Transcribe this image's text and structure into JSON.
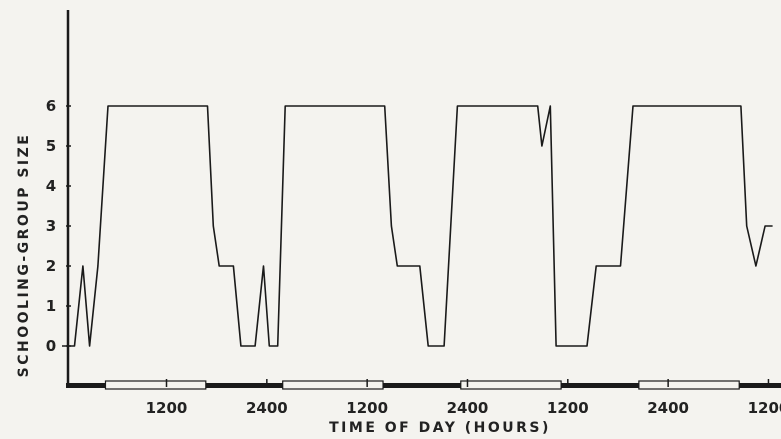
{
  "chart_data": {
    "type": "line",
    "title": "",
    "xlabel": "TIME OF DAY (HOURS)",
    "ylabel": "SCHOOLING-GROUP SIZE",
    "ylim": [
      0,
      6
    ],
    "y_ticks": [
      "0",
      "1",
      "2",
      "3",
      "4",
      "5",
      "6"
    ],
    "x_tick_labels": [
      "1200",
      "2400",
      "1200",
      "2400",
      "1200",
      "2400",
      "1200"
    ],
    "x_tick_hours": [
      12,
      24,
      36,
      48,
      60,
      72,
      84
    ],
    "xlim": [
      -0.5,
      85.5
    ],
    "light_periods": [
      [
        4.7,
        16.7
      ],
      [
        25.9,
        37.9
      ],
      [
        47.2,
        59.2
      ],
      [
        68.5,
        80.5
      ]
    ],
    "grid": false,
    "series": [
      {
        "points": [
          [
            -0.5,
            0
          ],
          [
            1,
            0
          ],
          [
            2,
            2
          ],
          [
            2.8,
            0
          ],
          [
            3.8,
            2
          ],
          [
            5,
            6
          ],
          [
            16.9,
            6
          ],
          [
            17.6,
            3
          ],
          [
            18.3,
            2
          ],
          [
            20,
            2
          ],
          [
            20.9,
            0
          ],
          [
            22.6,
            0
          ],
          [
            23.6,
            2
          ],
          [
            24.3,
            0
          ],
          [
            25.3,
            0
          ],
          [
            26.2,
            6
          ],
          [
            38.1,
            6
          ],
          [
            38.9,
            3
          ],
          [
            39.6,
            2
          ],
          [
            42.3,
            2
          ],
          [
            43.3,
            0
          ],
          [
            45.2,
            0
          ],
          [
            46.8,
            6
          ],
          [
            56.4,
            6
          ],
          [
            56.9,
            5
          ],
          [
            57.9,
            6
          ],
          [
            58.6,
            0
          ],
          [
            62.3,
            0
          ],
          [
            63.4,
            2
          ],
          [
            66.3,
            2
          ],
          [
            67.8,
            6
          ],
          [
            80.7,
            6
          ],
          [
            81.4,
            3
          ],
          [
            82.5,
            2
          ],
          [
            83.6,
            3
          ],
          [
            84.5,
            3
          ]
        ]
      }
    ]
  }
}
